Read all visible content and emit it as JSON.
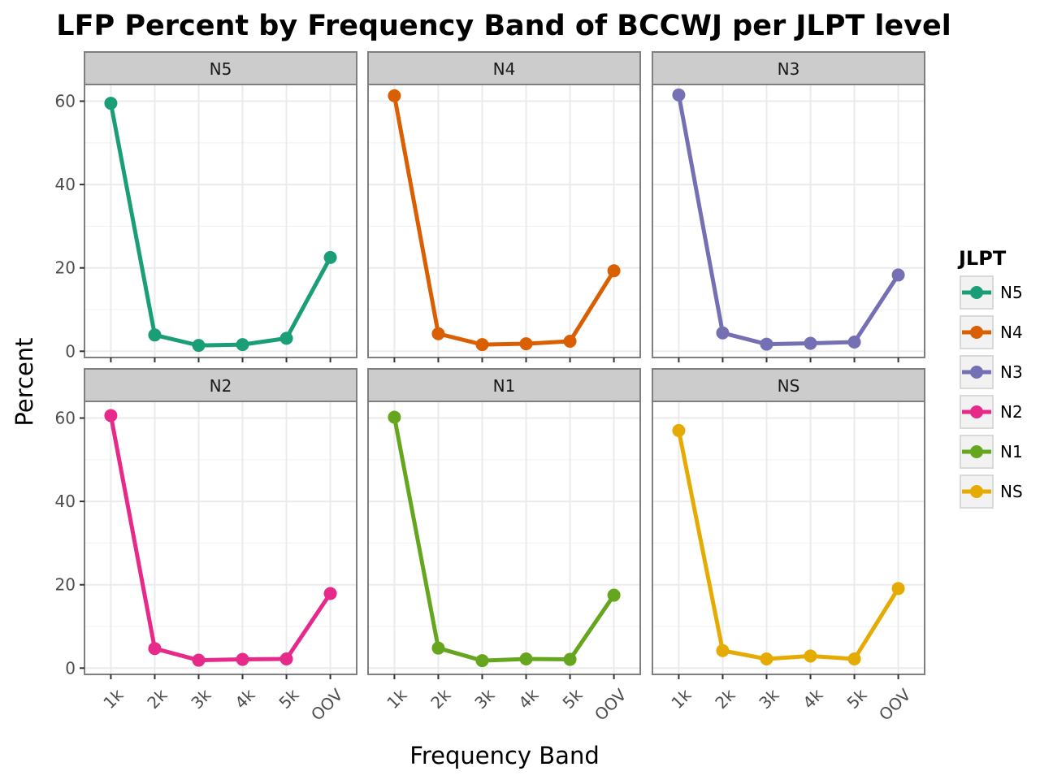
{
  "chart_data": {
    "type": "line",
    "title": "LFP Percent by Frequency Band of BCCWJ per JLPT level",
    "xlabel": "Frequency Band",
    "ylabel": "Percent",
    "categories": [
      "1k",
      "2k",
      "3k",
      "4k",
      "5k",
      "OOV"
    ],
    "ylim": [
      -1.5,
      64
    ],
    "yticks": [
      0,
      20,
      40,
      60
    ],
    "grid": true,
    "legend_title": "JLPT",
    "legend_position": "right",
    "facet_layout": "2 rows x 3 columns",
    "series": [
      {
        "name": "N5",
        "color": "#1b9e77",
        "values": [
          59.5,
          3.9,
          1.4,
          1.6,
          3.1,
          22.5
        ]
      },
      {
        "name": "N4",
        "color": "#d95f02",
        "values": [
          61.3,
          4.2,
          1.6,
          1.8,
          2.4,
          19.3
        ]
      },
      {
        "name": "N3",
        "color": "#7570b3",
        "values": [
          61.5,
          4.4,
          1.7,
          1.9,
          2.2,
          18.3
        ]
      },
      {
        "name": "N2",
        "color": "#e7298a",
        "values": [
          60.6,
          4.7,
          1.9,
          2.1,
          2.2,
          17.9
        ]
      },
      {
        "name": "N1",
        "color": "#66a61e",
        "values": [
          60.2,
          4.8,
          1.8,
          2.2,
          2.1,
          17.5
        ]
      },
      {
        "name": "NS",
        "color": "#e6ab02",
        "values": [
          57.0,
          4.2,
          2.2,
          2.9,
          2.2,
          19.1
        ]
      }
    ]
  }
}
